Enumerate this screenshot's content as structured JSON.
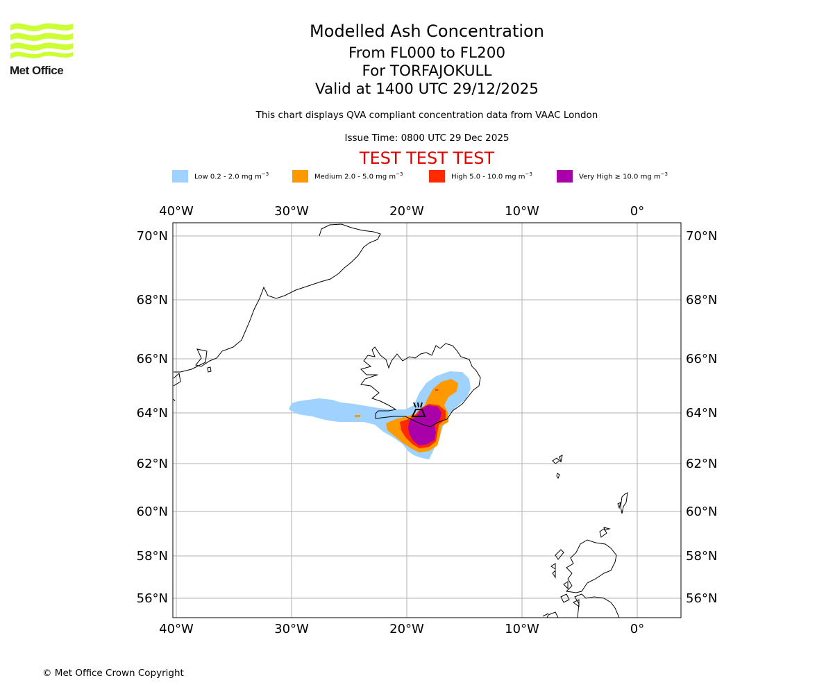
{
  "logo": {
    "text": "Met Office",
    "color": "#ccff33"
  },
  "header": {
    "title": "Modelled Ash Concentration",
    "level_range": "From FL000 to FL200",
    "volcano": "For TORFAJOKULL",
    "valid": "Valid at 1400 UTC 29/12/2025",
    "subtitle": "This chart displays QVA compliant concentration data from VAAC London",
    "issue_time": "Issue Time: 0800 UTC 29 Dec 2025",
    "test_banner": "TEST TEST TEST"
  },
  "legend": [
    {
      "label": "Low 0.2 - 2.0 mg m",
      "unit_exp": "−3",
      "color": "#a0d2ff"
    },
    {
      "label": "Medium 2.0 - 5.0 mg m",
      "unit_exp": "−3",
      "color": "#ff9900"
    },
    {
      "label": "High 5.0 - 10.0 mg m",
      "unit_exp": "−3",
      "color": "#ff2a00"
    },
    {
      "label": "Very High ≥ 10.0 mg m",
      "unit_exp": "−3",
      "color": "#aa00aa"
    }
  ],
  "map": {
    "lon_labels": [
      "40°W",
      "30°W",
      "20°W",
      "10°W",
      "0°"
    ],
    "lat_labels": [
      "70°N",
      "68°N",
      "66°N",
      "64°N",
      "62°N",
      "60°N",
      "58°N",
      "56°N"
    ],
    "volcano_icon": "volcano-icon"
  },
  "footer": {
    "copyright": "© Met Office Crown Copyright"
  }
}
